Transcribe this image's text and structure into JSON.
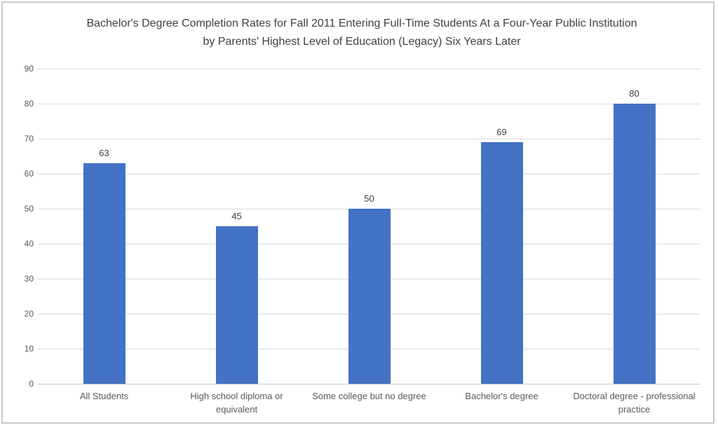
{
  "chart_data": {
    "type": "bar",
    "title": "Bachelor's Degree Completion Rates for Fall 2011 Entering Full-Time Students At a Four-Year Public Institution  by Parents' Highest Level of Education (Legacy) Six Years Later",
    "categories": [
      "All Students",
      "High school diploma or equivalent",
      "Some college but no degree",
      "Bachelor's degree",
      "Doctoral degree - professional practice"
    ],
    "values": [
      63,
      45,
      50,
      69,
      80
    ],
    "data_labels": [
      "63",
      "45",
      "50",
      "69",
      "80"
    ],
    "xlabel": "",
    "ylabel": "",
    "ylim": [
      0,
      90
    ],
    "yticks": [
      0,
      10,
      20,
      30,
      40,
      50,
      60,
      70,
      80,
      90
    ],
    "grid": "horizontal-gridlines-on",
    "legend": "none",
    "colors": {
      "bar_fill": "#4472C4",
      "gridline": "#D9D9D9",
      "axis_line": "#C3C3C3",
      "tick_label_text": "#595959",
      "category_label_text": "#595959",
      "data_label_text": "#404040",
      "title_text": "#404040",
      "chart_border": "#C9C9C9",
      "background": "#FFFFFF"
    }
  }
}
